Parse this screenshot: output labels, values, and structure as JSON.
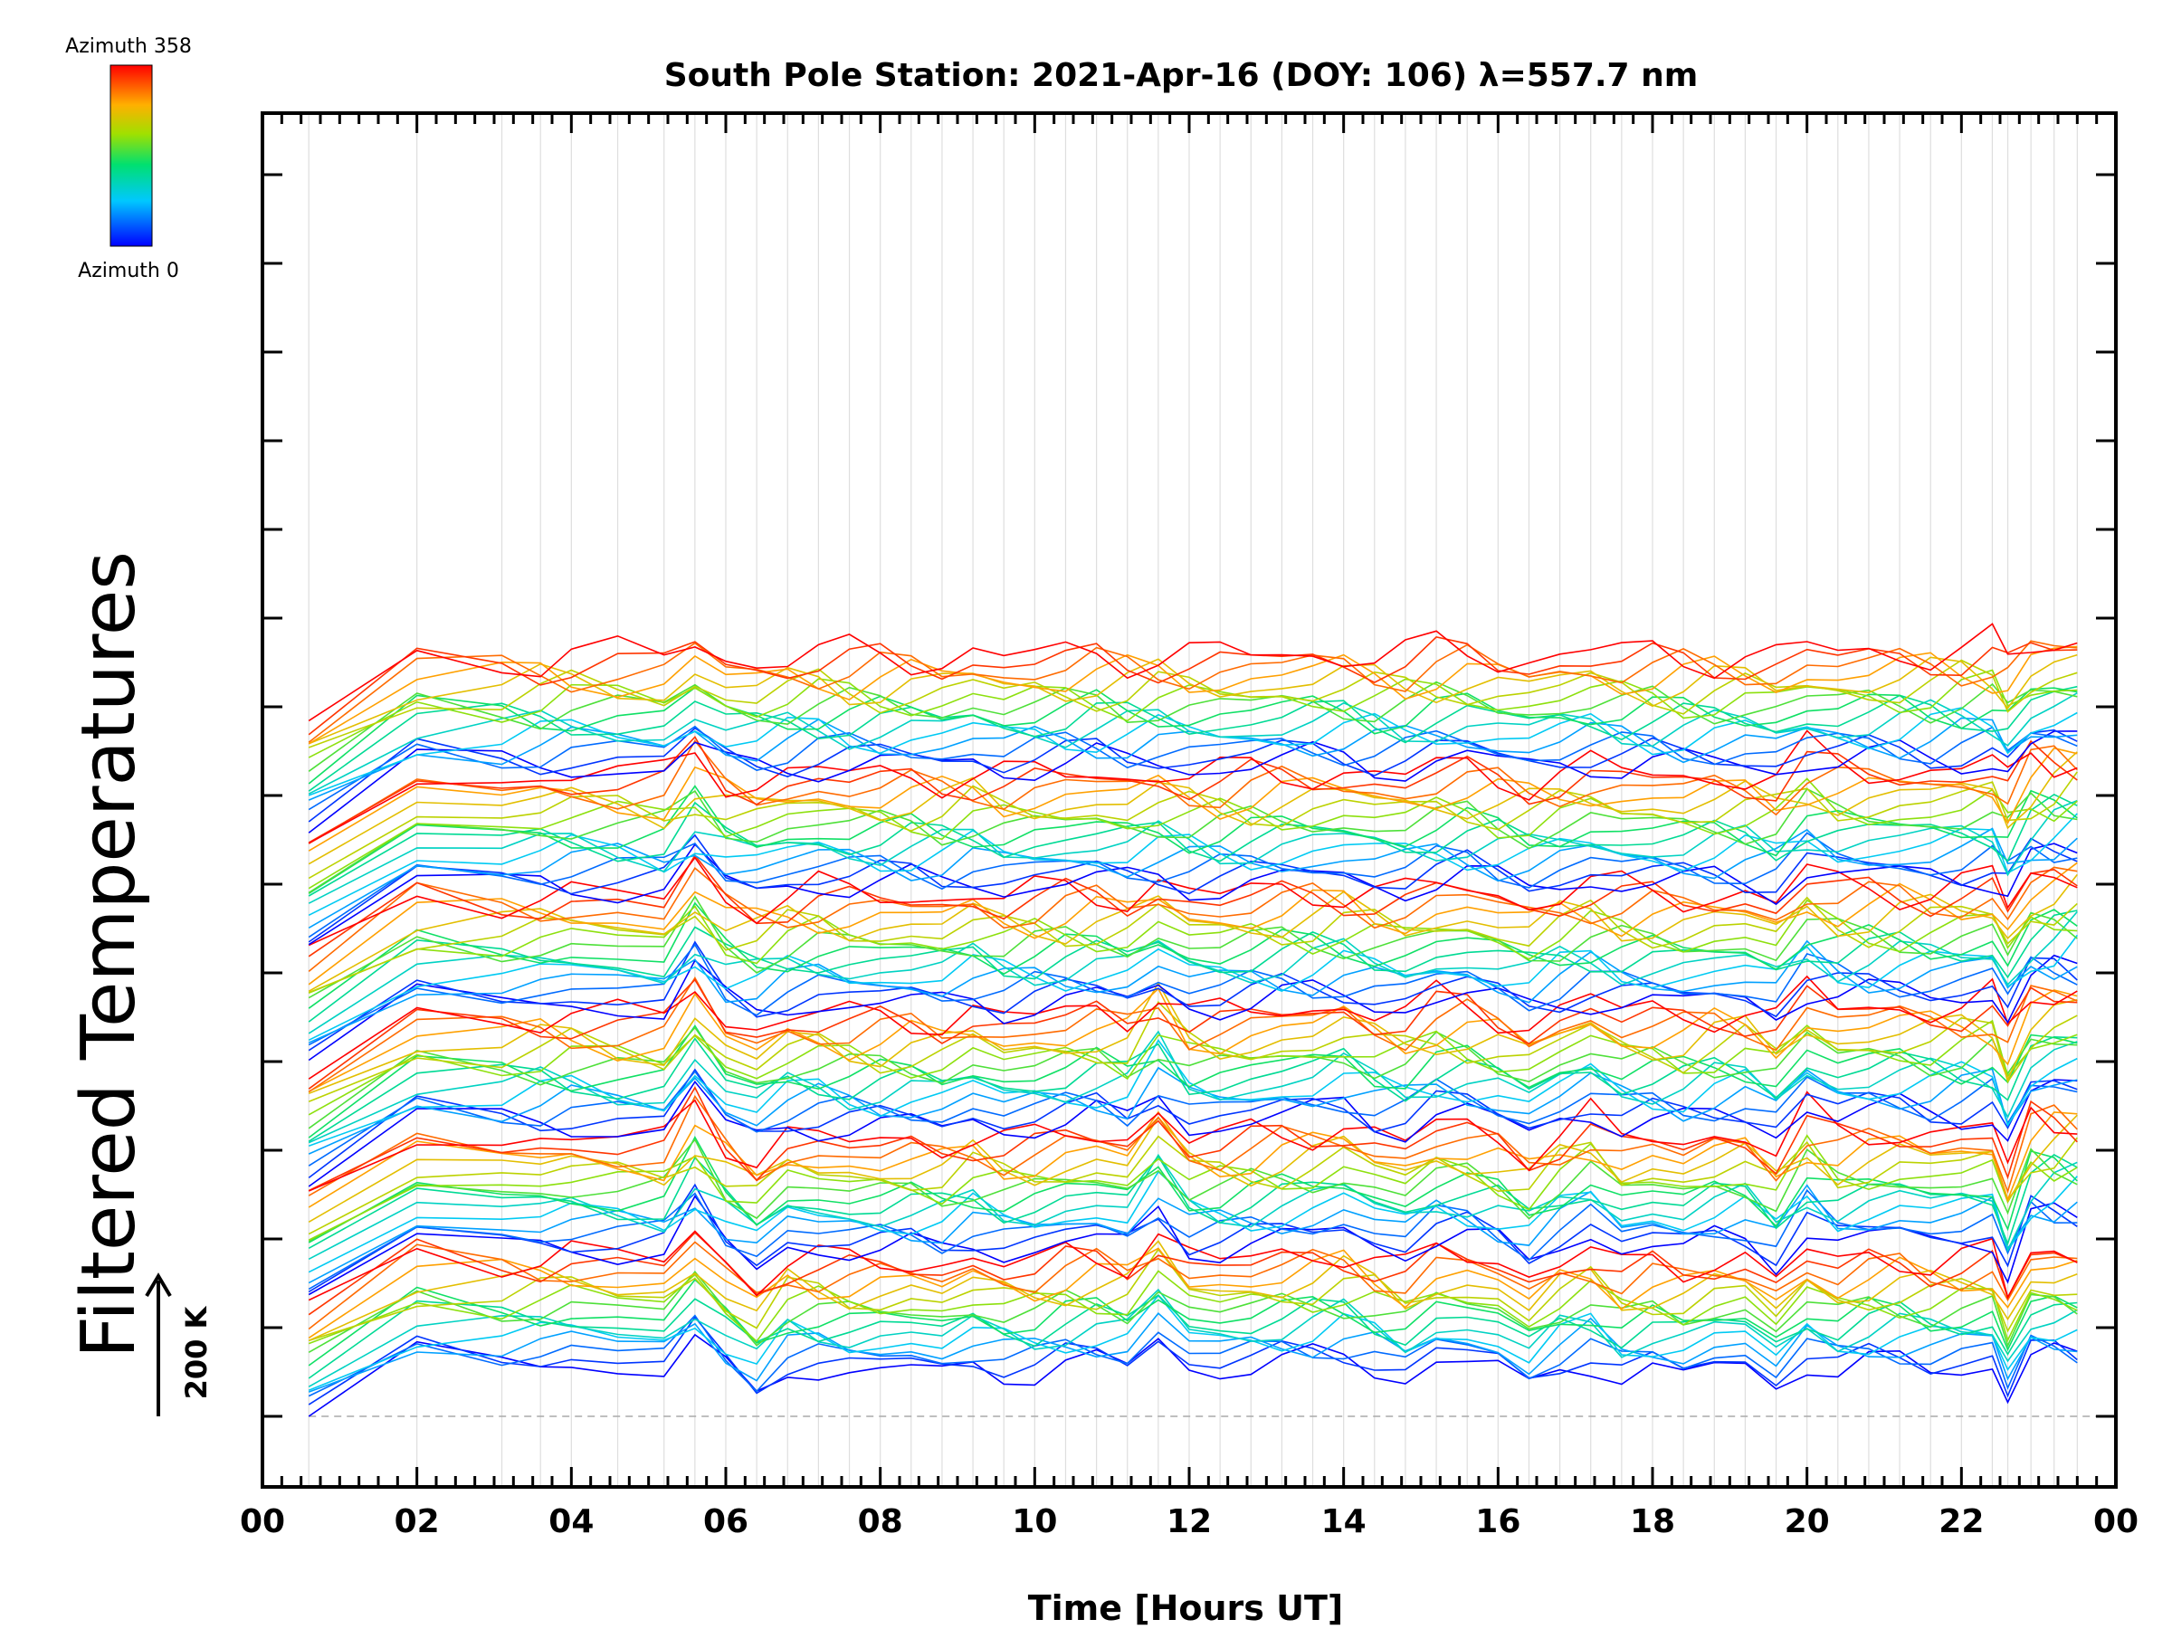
{
  "chart_data": {
    "type": "line",
    "title": "South Pole Station: 2021-Apr-16 (DOY: 106) λ=557.7 nm",
    "xlabel": "Time [Hours UT]",
    "ylabel": "Filtered Temperatures",
    "xlim": [
      0,
      24
    ],
    "x_ticks": [
      "00",
      "02",
      "04",
      "06",
      "08",
      "10",
      "12",
      "14",
      "16",
      "18",
      "20",
      "22",
      "00"
    ],
    "y_scale_bar": "200 K",
    "stack_groups": 6,
    "stack_azimuth_steps": 16,
    "legend": {
      "top_label": "Azimuth 358",
      "bottom_label": "Azimuth 0",
      "colormap": "rainbow",
      "azimuth_range": [
        0,
        358
      ]
    },
    "x": [
      0.6,
      2.0,
      3.1,
      3.6,
      4.0,
      4.6,
      5.2,
      5.6,
      6.0,
      6.4,
      6.8,
      7.2,
      7.6,
      8.0,
      8.4,
      8.8,
      9.2,
      9.6,
      10.0,
      10.4,
      10.8,
      11.2,
      11.6,
      12.0,
      12.4,
      12.8,
      13.2,
      13.6,
      14.0,
      14.4,
      14.8,
      15.2,
      15.6,
      16.0,
      16.4,
      16.8,
      17.2,
      17.6,
      18.0,
      18.4,
      18.8,
      19.2,
      19.6,
      20.0,
      20.4,
      20.8,
      21.2,
      21.6,
      22.0,
      22.4,
      22.6,
      22.9,
      23.2,
      23.5
    ],
    "groups": [
      {
        "azimuth_start": 0,
        "base_k": 0,
        "values": [
          0,
          110,
          95,
          100,
          105,
          92,
          88,
          140,
          85,
          40,
          95,
          90,
          82,
          85,
          88,
          80,
          100,
          85,
          80,
          95,
          100,
          92,
          150,
          95,
          88,
          92,
          98,
          105,
          115,
          95,
          70,
          105,
          100,
          90,
          55,
          95,
          110,
          70,
          85,
          75,
          95,
          98,
          55,
          105,
          80,
          95,
          100,
          90,
          95,
          100,
          30,
          110,
          110,
          105
        ]
      },
      {
        "azimuth_start": 0,
        "base_k": 200,
        "values": [
          0,
          110,
          100,
          98,
          102,
          95,
          90,
          160,
          95,
          60,
          105,
          95,
          90,
          90,
          95,
          88,
          110,
          90,
          92,
          105,
          110,
          100,
          165,
          100,
          95,
          100,
          108,
          115,
          130,
          105,
          90,
          120,
          115,
          100,
          70,
          110,
          135,
          90,
          100,
          90,
          110,
          115,
          70,
          140,
          100,
          110,
          120,
          110,
          115,
          120,
          40,
          140,
          145,
          150
        ]
      },
      {
        "azimuth_start": 0,
        "base_k": 400,
        "values": [
          0,
          115,
          105,
          110,
          112,
          100,
          95,
          170,
          100,
          80,
          110,
          110,
          100,
          100,
          105,
          100,
          120,
          100,
          105,
          110,
          120,
          108,
          170,
          110,
          105,
          110,
          120,
          125,
          140,
          115,
          105,
          130,
          125,
          110,
          90,
          120,
          140,
          110,
          110,
          105,
          120,
          125,
          95,
          150,
          120,
          125,
          130,
          125,
          130,
          135,
          70,
          150,
          165,
          170
        ]
      },
      {
        "azimuth_start": 0,
        "base_k": 600,
        "values": [
          0,
          120,
          110,
          115,
          118,
          110,
          100,
          170,
          110,
          95,
          115,
          120,
          110,
          110,
          112,
          110,
          125,
          108,
          112,
          115,
          120,
          115,
          145,
          115,
          110,
          115,
          120,
          125,
          130,
          118,
          110,
          125,
          128,
          115,
          100,
          120,
          130,
          115,
          115,
          112,
          118,
          120,
          100,
          150,
          125,
          125,
          130,
          130,
          132,
          140,
          90,
          150,
          160,
          170
        ]
      },
      {
        "azimuth_start": 0,
        "base_k": 800,
        "values": [
          0,
          120,
          112,
          118,
          120,
          115,
          108,
          160,
          115,
          105,
          118,
          122,
          115,
          115,
          118,
          115,
          128,
          112,
          115,
          118,
          122,
          118,
          130,
          118,
          115,
          118,
          122,
          125,
          128,
          120,
          115,
          125,
          128,
          118,
          110,
          122,
          130,
          118,
          118,
          115,
          120,
          122,
          110,
          150,
          130,
          128,
          130,
          132,
          135,
          140,
          100,
          150,
          160,
          170
        ]
      },
      {
        "azimuth_start": 0,
        "base_k": 1000,
        "values": [
          0,
          120,
          115,
          118,
          122,
          118,
          112,
          150,
          118,
          110,
          120,
          125,
          118,
          118,
          120,
          118,
          130,
          115,
          120,
          120,
          125,
          120,
          128,
          120,
          118,
          120,
          125,
          128,
          130,
          122,
          118,
          128,
          130,
          120,
          115,
          125,
          130,
          120,
          120,
          118,
          122,
          125,
          115,
          130,
          125,
          128,
          130,
          132,
          135,
          135,
          105,
          145,
          155,
          160
        ]
      }
    ]
  }
}
